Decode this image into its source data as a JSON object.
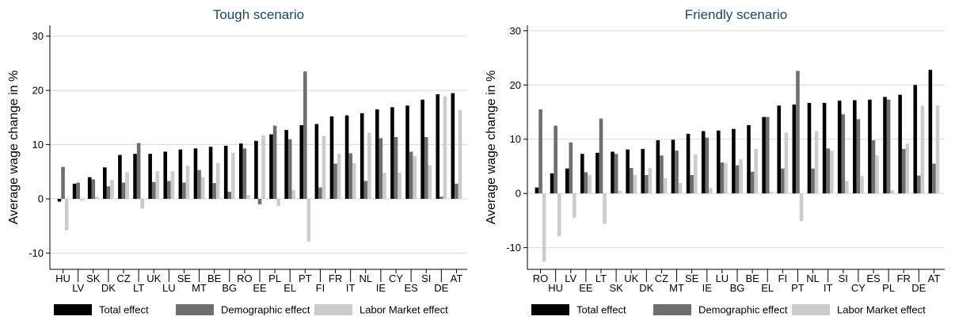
{
  "chart_data": [
    {
      "type": "bar",
      "title": "Tough scenario",
      "ylabel": "Average wage change in %",
      "xlabel": "",
      "ylim": [
        -13,
        32
      ],
      "yticks": [
        -10,
        0,
        10,
        20,
        30
      ],
      "grid": true,
      "legend_position": "bottom",
      "categories": [
        "HU",
        "LV",
        "SK",
        "DK",
        "CZ",
        "LT",
        "UK",
        "LU",
        "SE",
        "MT",
        "BE",
        "BG",
        "RO",
        "EE",
        "PL",
        "EL",
        "PT",
        "FI",
        "FR",
        "IT",
        "NL",
        "IE",
        "CY",
        "ES",
        "SI",
        "DE",
        "AT"
      ],
      "series": [
        {
          "name": "Total effect",
          "color": "#000000",
          "values": [
            -0.5,
            2.8,
            4.0,
            5.8,
            8.1,
            8.3,
            8.3,
            8.7,
            9.1,
            9.3,
            9.6,
            9.8,
            10.2,
            10.7,
            11.9,
            12.7,
            13.6,
            13.8,
            15.2,
            15.4,
            15.8,
            16.5,
            16.9,
            17.2,
            18.3,
            19.3,
            19.5
          ]
        },
        {
          "name": "Demographic effect",
          "color": "#6e6e6e",
          "values": [
            5.9,
            3.0,
            3.6,
            2.3,
            3.0,
            10.3,
            3.1,
            3.3,
            3.0,
            5.3,
            2.9,
            1.3,
            9.3,
            -1.0,
            13.5,
            11.0,
            23.5,
            2.1,
            6.5,
            8.4,
            3.3,
            11.2,
            11.4,
            8.7,
            11.4,
            0.4,
            2.8
          ]
        },
        {
          "name": "Labor Market effect",
          "color": "#cccccc",
          "values": [
            -5.8,
            -0.3,
            0.4,
            3.5,
            4.9,
            -1.8,
            5.1,
            5.1,
            6.1,
            4.0,
            6.6,
            8.5,
            0.7,
            11.7,
            -1.3,
            1.6,
            -7.9,
            11.6,
            8.3,
            6.6,
            12.2,
            4.8,
            4.8,
            7.9,
            6.2,
            18.9,
            16.4
          ]
        }
      ]
    },
    {
      "type": "bar",
      "title": "Friendly scenario",
      "ylabel": "Average wage change in %",
      "xlabel": "",
      "ylim": [
        -14,
        31
      ],
      "yticks": [
        -10,
        0,
        10,
        20,
        30
      ],
      "grid": true,
      "legend_position": "bottom",
      "categories": [
        "RO",
        "HU",
        "LV",
        "EE",
        "LT",
        "SK",
        "UK",
        "DK",
        "CZ",
        "MT",
        "SE",
        "IE",
        "LU",
        "BG",
        "BE",
        "EL",
        "FI",
        "PT",
        "NL",
        "IT",
        "SI",
        "CY",
        "ES",
        "PL",
        "FR",
        "DE",
        "AT"
      ],
      "series": [
        {
          "name": "Total effect",
          "color": "#000000",
          "values": [
            1.1,
            3.7,
            4.6,
            7.3,
            7.5,
            7.7,
            8.1,
            8.2,
            9.8,
            9.9,
            11.0,
            11.5,
            11.6,
            11.9,
            12.6,
            14.1,
            16.2,
            16.4,
            16.7,
            16.7,
            17.1,
            17.2,
            17.3,
            17.8,
            18.2,
            20.0,
            22.8
          ]
        },
        {
          "name": "Demographic effect",
          "color": "#6e6e6e",
          "values": [
            15.5,
            12.5,
            9.4,
            3.9,
            13.8,
            7.3,
            4.7,
            3.4,
            7.0,
            7.9,
            3.4,
            10.3,
            5.7,
            5.2,
            4.0,
            14.1,
            4.6,
            22.6,
            4.6,
            8.3,
            14.6,
            13.7,
            9.8,
            17.3,
            8.2,
            3.3,
            5.5
          ]
        },
        {
          "name": "Labor Market effect",
          "color": "#cccccc",
          "values": [
            -12.6,
            -7.9,
            -4.5,
            3.4,
            -5.6,
            0.5,
            3.4,
            4.7,
            2.8,
            1.9,
            7.2,
            1.0,
            5.6,
            6.3,
            8.2,
            0.3,
            11.2,
            -5.1,
            11.5,
            7.9,
            2.3,
            3.2,
            7.0,
            0.6,
            9.2,
            16.2,
            16.2
          ]
        }
      ]
    }
  ]
}
